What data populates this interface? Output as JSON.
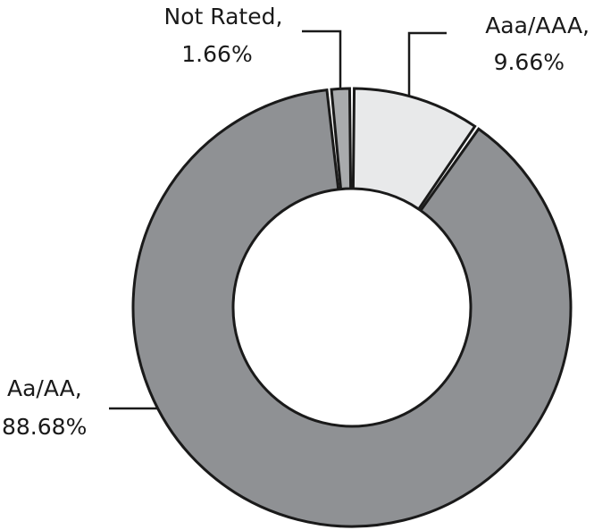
{
  "chart_data": {
    "type": "donut",
    "categories": [
      "Aaa/AAA,",
      "Aa/AA,",
      "Not Rated,"
    ],
    "values": [
      9.66,
      88.68,
      1.66
    ],
    "value_labels": [
      "9.66%",
      "88.68%",
      "1.66%"
    ],
    "colors": [
      "#e8e9ea",
      "#8f9194",
      "#a9abad"
    ]
  }
}
